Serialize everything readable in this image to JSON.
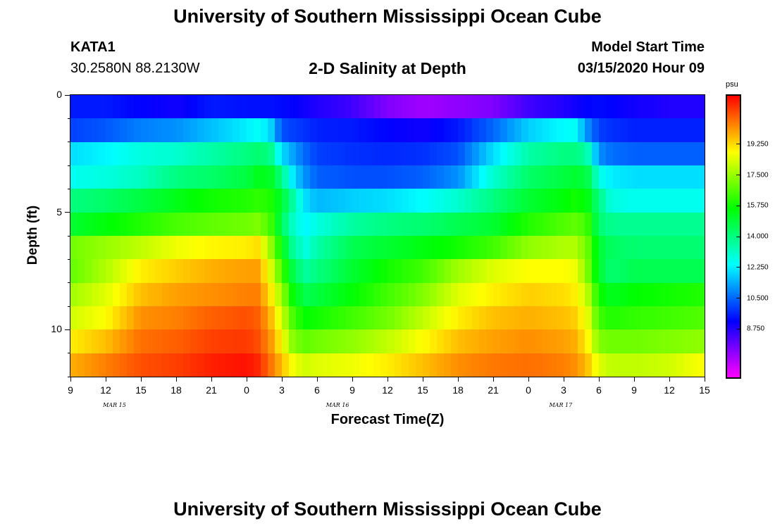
{
  "page": {
    "title": "University of Southern Mississippi Ocean Cube",
    "footer_title": "University of Southern Mississippi Ocean Cube",
    "station_id": "KATA1",
    "coordinates": "30.2580N 88.2130W",
    "plot_title": "2-D Salinity at Depth",
    "model_start_label": "Model Start Time",
    "model_start_value": "03/15/2020 Hour 09"
  },
  "chart_data": {
    "type": "heatmap",
    "title": "2-D Salinity at Depth",
    "xlabel": "Forecast Time(Z)",
    "ylabel": "Depth (ft)",
    "ylim": [
      0,
      12
    ],
    "y_tick_labels": [
      "0",
      "5",
      "10"
    ],
    "y_minor_ticks": [
      1,
      2,
      3,
      4,
      6,
      7,
      8,
      9,
      11,
      12
    ],
    "x_tick_labels": [
      "9",
      "12",
      "15",
      "18",
      "21",
      "0",
      "3",
      "6",
      "9",
      "12",
      "15",
      "18",
      "21",
      "0",
      "3",
      "6",
      "9",
      "12",
      "15"
    ],
    "day_labels": [
      {
        "label": "MAR 15",
        "hours_from_start": 3.75
      },
      {
        "label": "MAR 16",
        "hours_from_start": 22.75
      },
      {
        "label": "MAR 17",
        "hours_from_start": 41.75
      }
    ],
    "x_range_hours": [
      0,
      54
    ],
    "colorbar": {
      "unit": "psu",
      "min": 6.0,
      "max": 22.0,
      "tick_labels": [
        "8.750",
        "10.500",
        "12.250",
        "14.000",
        "15.750",
        "17.500",
        "19.250"
      ],
      "tick_values": [
        8.75,
        10.5,
        12.25,
        14.0,
        15.75,
        17.5,
        19.25
      ]
    },
    "grid": false,
    "depth_layers_ft": [
      0.5,
      1.5,
      2.5,
      3.5,
      4.5,
      5.5,
      6.5,
      7.5,
      8.5,
      9.5,
      10.5,
      11.5
    ],
    "time_hours_from_start": [
      0,
      3,
      6,
      9,
      12,
      15,
      16,
      17,
      18,
      19,
      20,
      21,
      24,
      27,
      30,
      33,
      36,
      39,
      42,
      43,
      44,
      45,
      46,
      48,
      51,
      54
    ],
    "salinity_psu": [
      [
        9.5,
        9.5,
        9.2,
        9.0,
        9.5,
        9.4,
        9.4,
        9.4,
        9.3,
        9.2,
        9.0,
        8.8,
        8.4,
        7.6,
        7.2,
        7.4,
        7.6,
        8.4,
        8.8,
        9.0,
        9.2,
        9.3,
        9.2,
        9.0,
        8.8,
        8.8
      ],
      [
        10.0,
        10.3,
        10.8,
        11.0,
        11.6,
        12.2,
        12.5,
        12.0,
        10.2,
        10.0,
        9.8,
        9.6,
        9.5,
        9.2,
        9.0,
        9.5,
        10.5,
        11.8,
        12.4,
        12.5,
        11.0,
        10.0,
        9.8,
        9.6,
        9.6,
        9.6
      ],
      [
        12.0,
        12.3,
        12.8,
        13.0,
        13.5,
        14.0,
        14.2,
        14.0,
        12.0,
        11.2,
        10.5,
        10.0,
        9.8,
        9.7,
        9.8,
        10.2,
        12.0,
        13.5,
        14.0,
        14.0,
        13.5,
        11.0,
        10.6,
        10.4,
        10.4,
        10.4
      ],
      [
        12.6,
        12.8,
        13.2,
        14.0,
        14.3,
        14.8,
        15.3,
        15.2,
        14.0,
        12.0,
        11.0,
        10.4,
        10.2,
        10.2,
        10.4,
        11.0,
        13.0,
        14.3,
        14.8,
        15.0,
        14.8,
        12.8,
        12.2,
        12.0,
        12.0,
        12.0
      ],
      [
        14.0,
        14.3,
        14.8,
        15.3,
        15.8,
        16.0,
        16.2,
        16.0,
        15.0,
        13.5,
        12.0,
        11.5,
        11.8,
        12.0,
        12.4,
        13.0,
        14.0,
        15.0,
        15.5,
        15.8,
        15.5,
        14.0,
        12.8,
        12.6,
        12.6,
        12.6
      ],
      [
        15.0,
        15.5,
        16.0,
        16.5,
        16.8,
        17.0,
        17.2,
        16.5,
        14.5,
        13.0,
        12.3,
        12.8,
        13.6,
        14.0,
        14.2,
        14.6,
        15.0,
        16.0,
        16.6,
        16.8,
        16.4,
        14.2,
        13.8,
        13.8,
        13.8,
        13.8
      ],
      [
        17.0,
        17.5,
        18.0,
        18.6,
        18.9,
        19.0,
        19.2,
        17.6,
        15.5,
        13.6,
        12.8,
        13.5,
        14.6,
        15.0,
        15.4,
        15.8,
        16.4,
        17.4,
        17.8,
        17.8,
        17.0,
        15.0,
        14.4,
        14.2,
        14.2,
        14.2
      ],
      [
        16.8,
        17.8,
        19.0,
        19.4,
        19.8,
        20.0,
        20.0,
        18.5,
        16.5,
        14.6,
        13.6,
        14.0,
        15.0,
        15.8,
        16.4,
        17.6,
        18.4,
        18.8,
        18.8,
        18.6,
        17.2,
        15.0,
        14.2,
        14.6,
        14.6,
        14.6
      ],
      [
        17.6,
        18.4,
        19.6,
        20.0,
        20.2,
        20.4,
        20.4,
        19.2,
        17.5,
        15.5,
        14.6,
        14.8,
        15.6,
        16.4,
        17.2,
        18.4,
        19.0,
        19.4,
        19.2,
        19.0,
        18.0,
        15.8,
        15.2,
        15.6,
        15.8,
        16.0
      ],
      [
        18.2,
        18.8,
        20.2,
        20.4,
        20.8,
        21.0,
        20.8,
        19.8,
        18.2,
        16.4,
        15.6,
        15.8,
        16.4,
        17.0,
        18.0,
        19.0,
        19.6,
        19.8,
        19.6,
        19.4,
        18.6,
        16.4,
        16.0,
        16.2,
        16.4,
        16.6
      ],
      [
        19.0,
        19.6,
        20.6,
        20.8,
        21.2,
        21.3,
        21.0,
        20.2,
        18.8,
        17.2,
        16.8,
        17.0,
        17.4,
        18.0,
        18.8,
        19.6,
        20.0,
        20.2,
        20.0,
        19.8,
        19.0,
        17.2,
        17.0,
        17.0,
        17.2,
        17.4
      ],
      [
        19.8,
        20.4,
        21.0,
        21.2,
        21.6,
        21.8,
        21.5,
        20.6,
        19.6,
        18.6,
        18.2,
        18.4,
        18.6,
        19.0,
        19.6,
        20.2,
        20.5,
        20.6,
        20.4,
        20.2,
        19.6,
        18.4,
        18.0,
        18.0,
        18.2,
        18.8
      ]
    ]
  }
}
